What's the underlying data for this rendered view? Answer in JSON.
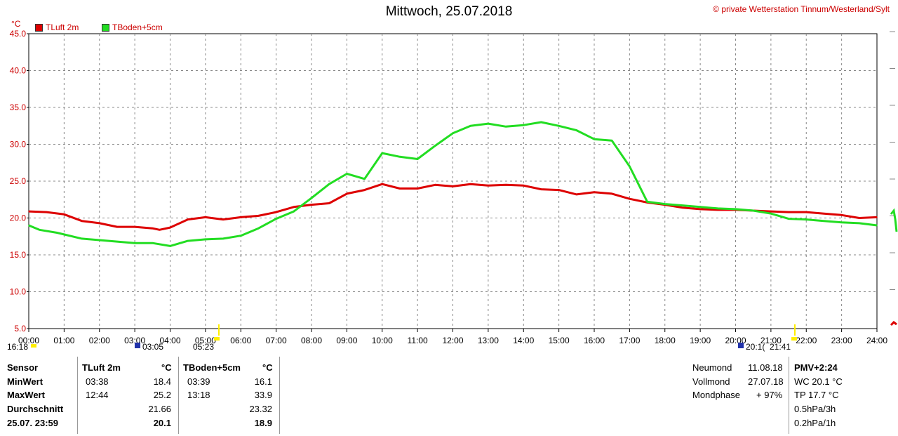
{
  "title": "Mittwoch, 25.07.2018",
  "copyright": "© private Wetterstation Tinnum/Westerland/Sylt",
  "unit_label": "°C",
  "legend": [
    {
      "label": "TLuft 2m",
      "color": "#dd0000"
    },
    {
      "label": "TBoden+5cm",
      "color": "#22dd22"
    }
  ],
  "sun_moon_times": {
    "left_start": "16:18",
    "moonset": "03:05",
    "sunrise": "05:23",
    "sunset": "20:1(",
    "moonrise": "21:41"
  },
  "chart_data": {
    "type": "line",
    "x_ticks": [
      "00:00",
      "01:00",
      "02:00",
      "03:00",
      "04:00",
      "05:00",
      "06:00",
      "07:00",
      "08:00",
      "09:00",
      "10:00",
      "11:00",
      "12:00",
      "13:00",
      "14:00",
      "15:00",
      "16:00",
      "17:00",
      "18:00",
      "19:00",
      "20:00",
      "21:00",
      "22:00",
      "23:00",
      "24:00"
    ],
    "y_ticks": [
      "45.0",
      "40.0",
      "35.0",
      "30.0",
      "25.0",
      "20.0",
      "15.0",
      "10.0",
      "5.0"
    ],
    "xlim": [
      0,
      24
    ],
    "ylim": [
      5,
      45
    ],
    "grid": true,
    "series": [
      {
        "name": "TLuft 2m",
        "color": "#dd0000",
        "x": [
          0,
          0.5,
          1,
          1.5,
          2,
          2.5,
          3,
          3.5,
          3.7,
          4,
          4.5,
          5,
          5.5,
          6,
          6.5,
          7,
          7.5,
          8,
          8.5,
          9,
          9.5,
          10,
          10.5,
          11,
          11.5,
          12,
          12.5,
          13,
          13.5,
          14,
          14.5,
          15,
          15.5,
          16,
          16.5,
          17,
          17.5,
          18,
          18.5,
          19,
          19.5,
          20,
          20.5,
          21,
          21.5,
          22,
          22.5,
          23,
          23.5,
          24
        ],
        "values": [
          20.9,
          20.8,
          20.5,
          19.6,
          19.3,
          18.8,
          18.8,
          18.6,
          18.4,
          18.7,
          19.8,
          20.1,
          19.8,
          20.1,
          20.3,
          20.8,
          21.5,
          21.8,
          22,
          23.3,
          23.8,
          24.6,
          24.0,
          24.0,
          24.5,
          24.3,
          24.6,
          24.4,
          24.5,
          24.4,
          23.9,
          23.8,
          23.2,
          23.5,
          23.3,
          22.6,
          22.1,
          21.8,
          21.4,
          21.2,
          21.1,
          21.1,
          21.0,
          20.9,
          20.8,
          20.8,
          20.6,
          20.4,
          20.0,
          20.1
        ]
      },
      {
        "name": "TBoden+5cm",
        "color": "#22dd22",
        "x": [
          0,
          0.3,
          0.8,
          1.5,
          2,
          2.5,
          3,
          3.5,
          4,
          4.5,
          5,
          5.5,
          6,
          6.5,
          7,
          7.5,
          8,
          8.5,
          9,
          9.5,
          10,
          10.5,
          11,
          11.5,
          12,
          12.5,
          13,
          13.5,
          14,
          14.5,
          15,
          15.5,
          16,
          16.5,
          17,
          17.5,
          18,
          18.5,
          19,
          19.5,
          20,
          20.5,
          21,
          21.5,
          22,
          22.5,
          23,
          23.5,
          24
        ],
        "values": [
          19.0,
          18.4,
          18.0,
          17.2,
          17.0,
          16.8,
          16.6,
          16.6,
          16.2,
          16.9,
          17.1,
          17.2,
          17.6,
          18.6,
          19.9,
          20.9,
          22.7,
          24.6,
          26.0,
          25.3,
          28.8,
          28.3,
          28.0,
          29.8,
          31.5,
          32.5,
          32.8,
          32.4,
          32.6,
          33.0,
          32.5,
          31.9,
          30.7,
          30.5,
          27.0,
          22.2,
          21.9,
          21.7,
          21.5,
          21.3,
          21.2,
          21.0,
          20.6,
          19.9,
          19.8,
          19.6,
          19.4,
          19.3,
          19.0
        ]
      }
    ]
  },
  "stats": {
    "header": {
      "sensor": "Sensor",
      "tluft": "TLuft 2m",
      "tluft_unit": "°C",
      "tboden": "TBoden+5cm",
      "tboden_unit": "°C"
    },
    "rows": [
      {
        "label": "MinWert",
        "tluft_time": "03:38",
        "tluft_val": "18.4",
        "tboden_time": "03:39",
        "tboden_val": "16.1"
      },
      {
        "label": "MaxWert",
        "tluft_time": "12:44",
        "tluft_val": "25.2",
        "tboden_time": "13:18",
        "tboden_val": "33.9"
      },
      {
        "label": "Durchschnitt",
        "tluft_time": "",
        "tluft_val": "21.66",
        "tboden_time": "",
        "tboden_val": "23.32"
      },
      {
        "label": "25.07. 23:59",
        "tluft_time": "",
        "tluft_val": "20.1",
        "tboden_time": "",
        "tboden_val": "18.9"
      }
    ],
    "moon": [
      {
        "label": "Neumond",
        "value": "11.08.18"
      },
      {
        "label": "Vollmond",
        "value": "27.07.18"
      },
      {
        "label": "Mondphase",
        "value": "+ 97%"
      }
    ],
    "pmv": [
      "PMV+2:24",
      "WC 20.1 °C",
      "TP 17.7 °C",
      "0.5hPa/3h",
      "0.2hPa/1h"
    ]
  }
}
